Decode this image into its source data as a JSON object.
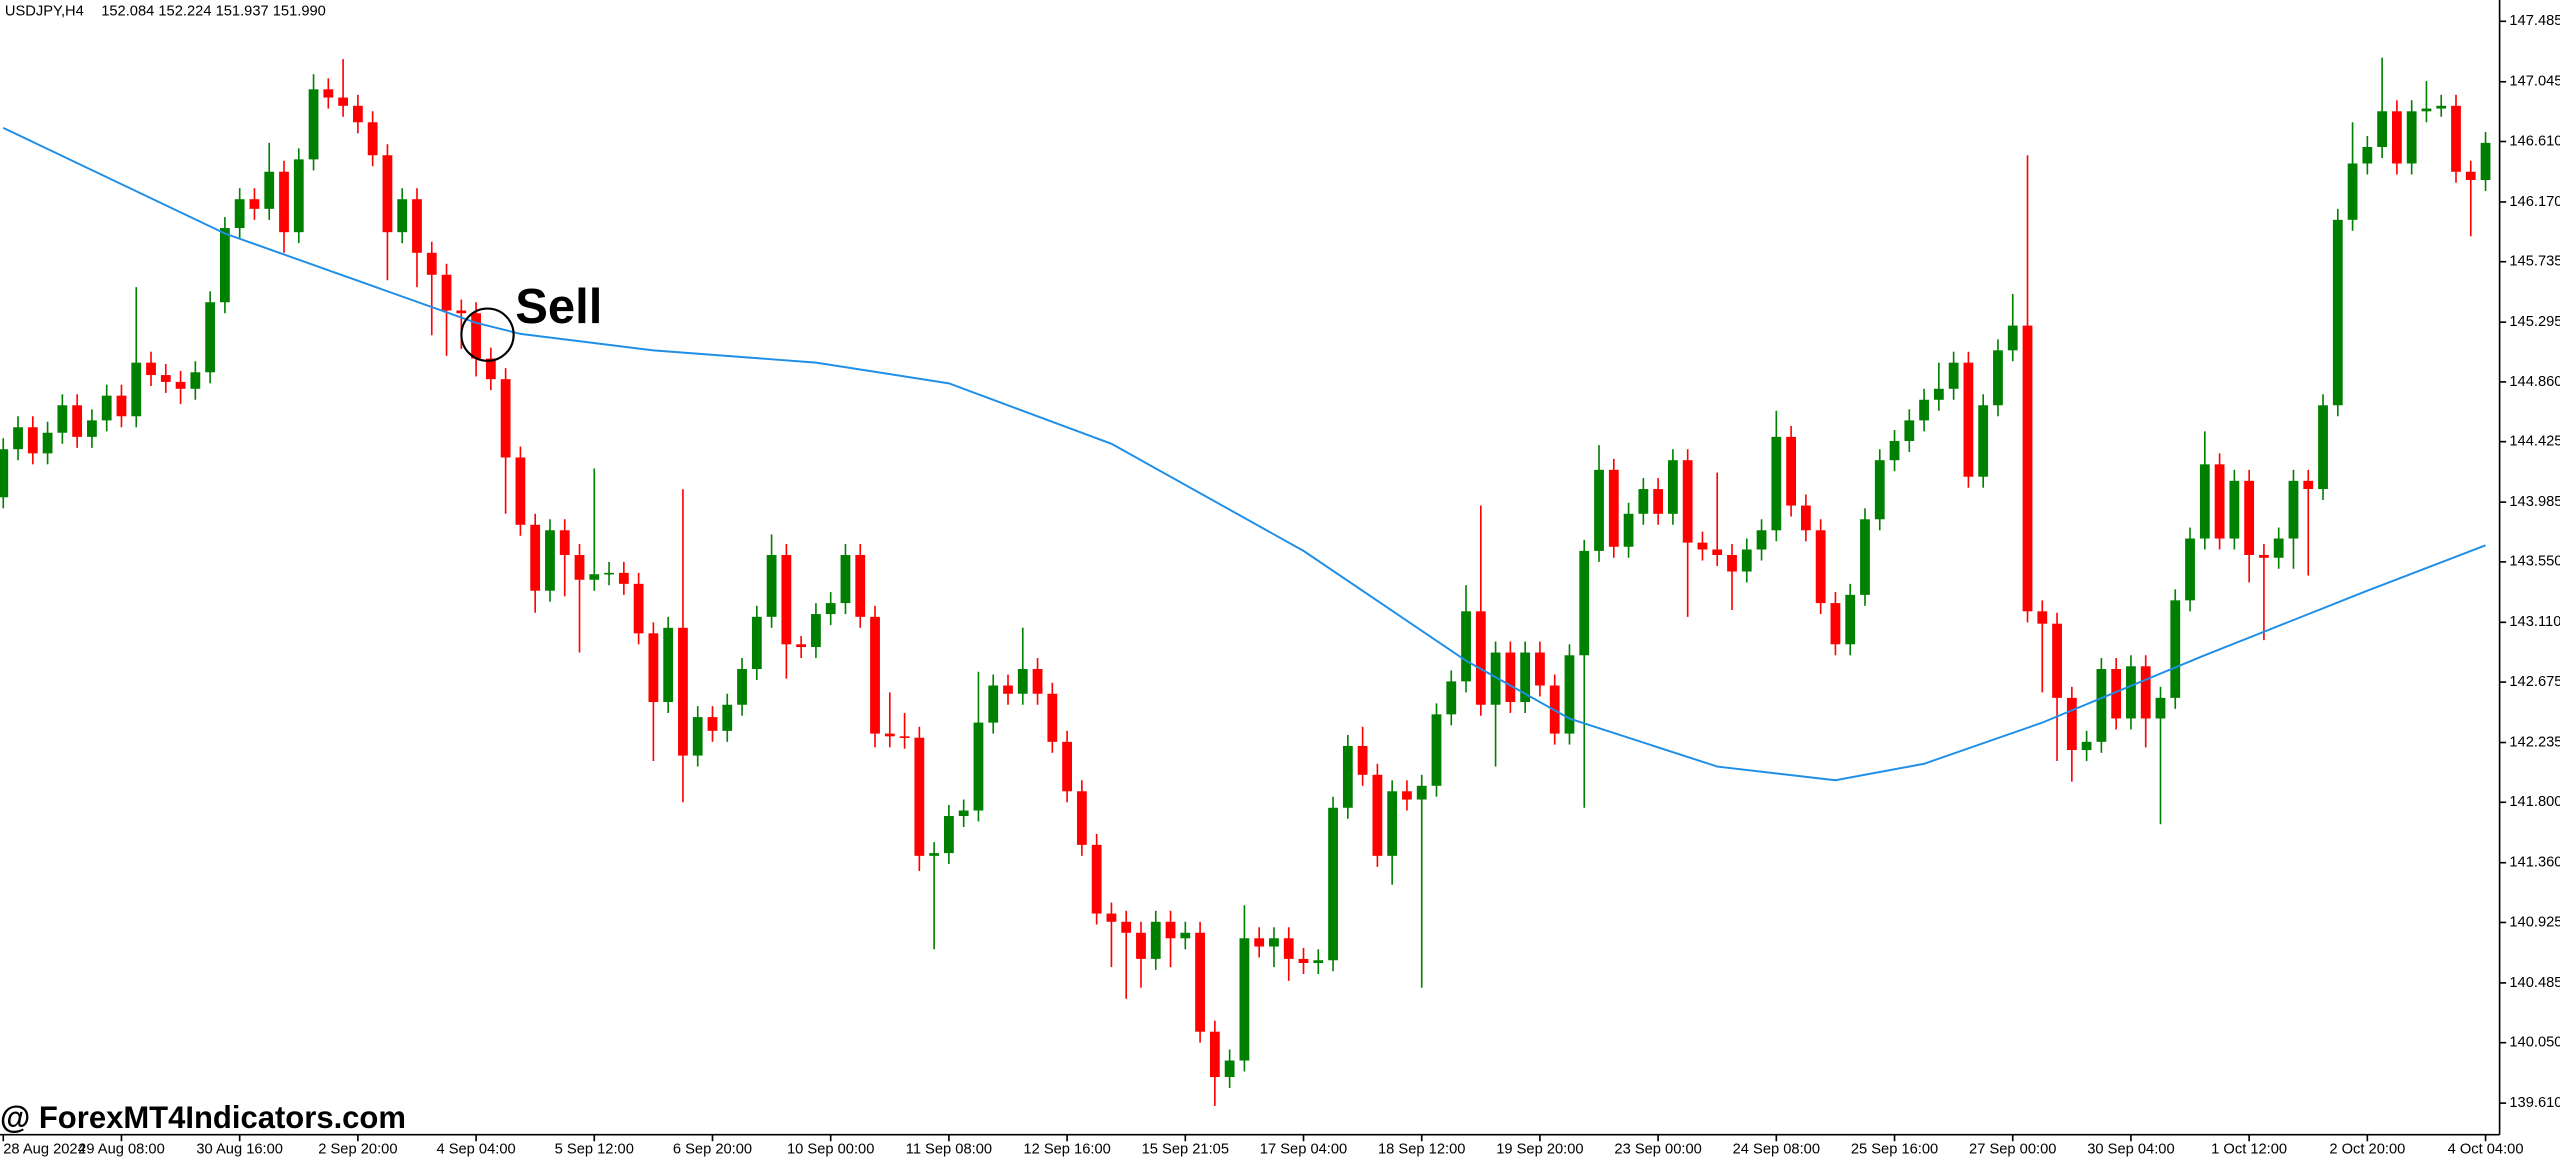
{
  "chart_data": {
    "type": "candlestick",
    "title": "USDJPY,H4",
    "quote": "152.084 152.224 151.937 151.990",
    "annotation": "Sell",
    "watermark": "@ ForexMT4Indicators.com",
    "up_color": "#008000",
    "down_color": "#ff0000",
    "categories": [
      "28 Aug 2024",
      null,
      null,
      null,
      null,
      null,
      null,
      null,
      "29 Aug 08:00",
      null,
      null,
      null,
      null,
      null,
      null,
      null,
      "30 Aug 16:00",
      null,
      null,
      null,
      null,
      null,
      null,
      null,
      "2 Sep 20:00",
      null,
      null,
      null,
      null,
      null,
      null,
      null,
      "4 Sep 04:00",
      null,
      null,
      null,
      null,
      null,
      null,
      null,
      "5 Sep 12:00",
      null,
      null,
      null,
      null,
      null,
      null,
      null,
      "6 Sep 20:00",
      null,
      null,
      null,
      null,
      null,
      null,
      null,
      "10 Sep 00:00",
      null,
      null,
      null,
      null,
      null,
      null,
      null,
      "11 Sep 08:00",
      null,
      null,
      null,
      null,
      null,
      null,
      null,
      "12 Sep 16:00",
      null,
      null,
      null,
      null,
      null,
      null,
      null,
      "15 Sep 21:05",
      null,
      null,
      null,
      null,
      null,
      null,
      null,
      "17 Sep 04:00",
      null,
      null,
      null,
      null,
      null,
      null,
      null,
      "18 Sep 12:00",
      null,
      null,
      null,
      null,
      null,
      null,
      null,
      "19 Sep 20:00",
      null,
      null,
      null,
      null,
      null,
      null,
      null,
      "23 Sep 00:00",
      null,
      null,
      null,
      null,
      null,
      null,
      null,
      "24 Sep 08:00",
      null,
      null,
      null,
      null,
      null,
      null,
      null,
      "25 Sep 16:00",
      null,
      null,
      null,
      null,
      null,
      null,
      null,
      "27 Sep 00:00",
      null,
      null,
      null,
      null,
      null,
      null,
      null,
      "30 Sep 04:00",
      null,
      null,
      null,
      null,
      null,
      null,
      null,
      "1 Oct 12:00",
      null,
      null,
      null,
      null,
      null,
      null,
      null,
      "2 Oct 20:00",
      null,
      null,
      null,
      null,
      null,
      null,
      null,
      "4 Oct 04:00"
    ],
    "open": [
      144.02,
      144.37,
      144.53,
      144.34,
      144.49,
      144.69,
      144.46,
      144.58,
      144.76,
      144.61,
      145.0,
      144.91,
      144.86,
      144.81,
      144.93,
      145.44,
      145.98,
      146.19,
      146.12,
      146.39,
      145.95,
      146.48,
      146.99,
      146.93,
      146.87,
      146.75,
      146.51,
      145.95,
      146.19,
      145.8,
      145.64,
      145.38,
      145.36,
      145.03,
      144.88,
      144.31,
      143.82,
      143.34,
      143.78,
      143.6,
      143.42,
      143.46,
      143.47,
      143.39,
      143.03,
      142.53,
      143.07,
      142.14,
      142.42,
      142.32,
      142.51,
      142.77,
      143.15,
      143.6,
      142.95,
      142.93,
      143.17,
      143.25,
      143.6,
      143.15,
      142.3,
      142.28,
      142.27,
      141.41,
      141.43,
      141.7,
      141.74,
      142.38,
      142.65,
      142.59,
      142.77,
      142.59,
      142.24,
      141.88,
      141.49,
      140.99,
      140.93,
      140.85,
      140.66,
      140.93,
      140.81,
      140.85,
      140.13,
      139.8,
      139.92,
      140.81,
      140.75,
      140.81,
      140.66,
      140.63,
      140.65,
      141.76,
      142.21,
      142.0,
      141.41,
      141.88,
      141.82,
      141.92,
      142.44,
      142.68,
      143.19,
      142.51,
      142.89,
      142.53,
      142.89,
      142.65,
      142.3,
      142.87,
      143.63,
      144.22,
      143.66,
      143.9,
      144.08,
      143.9,
      144.29,
      143.69,
      143.64,
      143.6,
      143.48,
      143.64,
      143.78,
      144.46,
      143.96,
      143.78,
      143.25,
      142.95,
      143.31,
      143.86,
      144.29,
      144.43,
      144.58,
      144.73,
      144.81,
      145.0,
      144.17,
      144.69,
      145.09,
      145.27,
      143.19,
      143.1,
      142.56,
      142.18,
      142.24,
      142.77,
      142.41,
      142.79,
      142.41,
      142.56,
      143.27,
      143.72,
      144.26,
      143.72,
      144.14,
      143.6,
      143.58,
      143.72,
      144.14,
      144.08,
      144.69,
      146.04,
      146.45,
      146.57,
      146.83,
      146.45,
      146.83,
      146.85,
      146.87,
      146.39,
      146.33
    ],
    "high": [
      144.45,
      144.61,
      144.61,
      144.57,
      144.77,
      144.77,
      144.66,
      144.84,
      144.84,
      145.55,
      145.08,
      144.99,
      144.94,
      145.01,
      145.52,
      146.06,
      146.27,
      146.27,
      146.6,
      146.47,
      146.56,
      147.1,
      147.07,
      147.21,
      146.95,
      146.83,
      146.59,
      146.27,
      146.27,
      145.88,
      145.72,
      145.46,
      145.44,
      145.11,
      144.96,
      144.39,
      143.9,
      143.86,
      143.86,
      143.68,
      144.23,
      143.55,
      143.55,
      143.47,
      143.11,
      143.15,
      144.08,
      142.5,
      142.5,
      142.59,
      142.85,
      143.23,
      143.75,
      143.68,
      143.01,
      143.25,
      143.33,
      143.68,
      143.68,
      143.23,
      142.6,
      142.45,
      142.35,
      141.51,
      141.78,
      141.82,
      142.75,
      142.73,
      142.73,
      143.07,
      142.85,
      142.67,
      142.32,
      141.96,
      141.57,
      141.07,
      141.01,
      140.93,
      141.01,
      141.01,
      140.93,
      140.93,
      140.21,
      140.0,
      141.05,
      140.89,
      140.89,
      140.89,
      140.74,
      140.73,
      141.84,
      142.29,
      142.35,
      142.08,
      141.96,
      141.96,
      142.0,
      142.52,
      142.76,
      143.38,
      143.96,
      142.97,
      142.97,
      142.97,
      142.97,
      142.73,
      142.95,
      143.71,
      144.4,
      144.3,
      143.98,
      144.16,
      144.16,
      144.37,
      144.37,
      143.77,
      144.2,
      143.68,
      143.72,
      143.86,
      144.65,
      144.54,
      144.04,
      143.86,
      143.33,
      143.39,
      143.94,
      144.37,
      144.51,
      144.66,
      144.81,
      145.0,
      145.08,
      145.08,
      144.77,
      145.17,
      145.5,
      146.51,
      143.27,
      143.18,
      142.64,
      142.32,
      142.85,
      142.85,
      142.87,
      142.87,
      142.64,
      143.35,
      143.8,
      144.5,
      144.34,
      144.22,
      144.22,
      143.68,
      143.8,
      144.22,
      144.22,
      144.77,
      146.12,
      146.75,
      146.65,
      147.22,
      146.91,
      146.91,
      147.05,
      146.95,
      146.95,
      146.47,
      146.68
    ],
    "low": [
      143.94,
      144.29,
      144.26,
      144.26,
      144.41,
      144.38,
      144.38,
      144.5,
      144.53,
      144.53,
      144.83,
      144.78,
      144.7,
      144.73,
      144.85,
      145.36,
      145.9,
      146.04,
      146.04,
      145.8,
      145.87,
      146.4,
      146.85,
      146.79,
      146.67,
      146.43,
      145.6,
      145.87,
      145.55,
      145.2,
      145.05,
      145.1,
      144.9,
      144.8,
      143.9,
      143.74,
      143.18,
      143.26,
      143.3,
      142.89,
      143.34,
      143.38,
      143.31,
      142.95,
      142.1,
      142.45,
      141.8,
      142.06,
      142.24,
      142.24,
      142.43,
      142.69,
      143.07,
      142.7,
      142.85,
      142.85,
      143.09,
      143.17,
      143.07,
      142.2,
      142.2,
      142.19,
      141.3,
      140.73,
      141.35,
      141.62,
      141.66,
      142.3,
      142.51,
      142.51,
      142.51,
      142.16,
      141.8,
      141.41,
      140.91,
      140.6,
      140.37,
      140.45,
      140.58,
      140.6,
      140.73,
      140.05,
      139.59,
      139.72,
      139.84,
      140.67,
      140.6,
      140.5,
      140.55,
      140.55,
      140.57,
      141.68,
      141.92,
      141.33,
      141.2,
      141.74,
      140.45,
      141.84,
      142.36,
      142.6,
      142.43,
      142.06,
      142.45,
      142.45,
      142.57,
      142.22,
      142.22,
      141.76,
      143.55,
      143.58,
      143.58,
      143.82,
      143.82,
      143.82,
      143.15,
      143.56,
      143.52,
      143.2,
      143.4,
      143.56,
      143.7,
      143.88,
      143.7,
      143.17,
      142.87,
      142.87,
      143.23,
      143.78,
      144.21,
      144.35,
      144.5,
      144.65,
      144.73,
      144.09,
      144.09,
      144.61,
      145.01,
      143.11,
      142.6,
      142.1,
      141.95,
      142.1,
      142.16,
      142.33,
      142.33,
      142.2,
      141.64,
      142.48,
      143.19,
      143.64,
      143.64,
      143.64,
      143.4,
      142.98,
      143.5,
      143.5,
      143.45,
      144.0,
      144.61,
      145.96,
      146.37,
      146.49,
      146.37,
      146.37,
      146.75,
      146.79,
      146.31,
      145.92,
      146.25
    ],
    "close": [
      144.37,
      144.53,
      144.34,
      144.49,
      144.69,
      144.46,
      144.58,
      144.76,
      144.61,
      145.0,
      144.91,
      144.86,
      144.81,
      144.93,
      145.44,
      145.98,
      146.19,
      146.12,
      146.39,
      145.95,
      146.48,
      146.99,
      146.93,
      146.87,
      146.75,
      146.51,
      145.95,
      146.19,
      145.8,
      145.64,
      145.38,
      145.36,
      145.03,
      144.88,
      144.31,
      143.82,
      143.34,
      143.78,
      143.6,
      143.42,
      143.46,
      143.47,
      143.39,
      143.03,
      142.53,
      143.07,
      142.14,
      142.42,
      142.32,
      142.51,
      142.77,
      143.15,
      143.6,
      142.95,
      142.93,
      143.17,
      143.25,
      143.6,
      143.15,
      142.3,
      142.28,
      142.27,
      141.41,
      141.43,
      141.7,
      141.74,
      142.38,
      142.65,
      142.59,
      142.77,
      142.59,
      142.24,
      141.88,
      141.49,
      140.99,
      140.93,
      140.85,
      140.66,
      140.93,
      140.81,
      140.85,
      140.13,
      139.8,
      139.92,
      140.81,
      140.75,
      140.81,
      140.66,
      140.63,
      140.65,
      141.76,
      142.21,
      142.0,
      141.41,
      141.88,
      141.82,
      141.92,
      142.44,
      142.68,
      143.19,
      142.51,
      142.89,
      142.53,
      142.89,
      142.65,
      142.3,
      142.87,
      143.63,
      144.22,
      143.66,
      143.9,
      144.08,
      143.9,
      144.29,
      143.69,
      143.64,
      143.6,
      143.48,
      143.64,
      143.78,
      144.46,
      143.96,
      143.78,
      143.25,
      142.95,
      143.31,
      143.86,
      144.29,
      144.43,
      144.58,
      144.73,
      144.81,
      145.0,
      144.17,
      144.69,
      145.09,
      145.27,
      143.19,
      143.1,
      142.56,
      142.18,
      142.24,
      142.77,
      142.41,
      142.79,
      142.41,
      142.56,
      143.27,
      143.72,
      144.26,
      143.72,
      144.14,
      143.6,
      143.58,
      143.72,
      144.14,
      144.08,
      144.69,
      146.04,
      146.45,
      146.57,
      146.83,
      146.45,
      146.83,
      146.85,
      146.87,
      146.39,
      146.33,
      146.6
    ],
    "ma": {
      "color": "#1e8fe8",
      "x": [
        0,
        15,
        32,
        35,
        44,
        55,
        64,
        75,
        88,
        99,
        106,
        116,
        124,
        130,
        138,
        149,
        160,
        168
      ],
      "values": [
        146.71,
        145.94,
        145.29,
        145.21,
        145.09,
        145.0,
        144.85,
        144.41,
        143.63,
        142.83,
        142.41,
        142.06,
        141.96,
        142.08,
        142.38,
        142.87,
        143.34,
        143.67
      ]
    },
    "ylim": [
      139.38,
      147.64
    ],
    "yticks": [
      147.485,
      147.045,
      {
        "value": 146.61,
        "label": "146.610"
      },
      {
        "value": 146.17,
        "label": "146.170"
      },
      145.735,
      145.295,
      {
        "value": 144.86,
        "label": "144.860"
      },
      144.425,
      143.985,
      {
        "value": 143.55,
        "label": "143.550"
      },
      {
        "value": 143.11,
        "label": "143.110"
      },
      142.675,
      142.235,
      {
        "value": 141.8,
        "label": "141.800"
      },
      {
        "value": 141.36,
        "label": "141.360"
      },
      140.925,
      140.485,
      {
        "value": 140.05,
        "label": "140.050"
      },
      {
        "value": 139.61,
        "label": "139.610"
      }
    ]
  }
}
